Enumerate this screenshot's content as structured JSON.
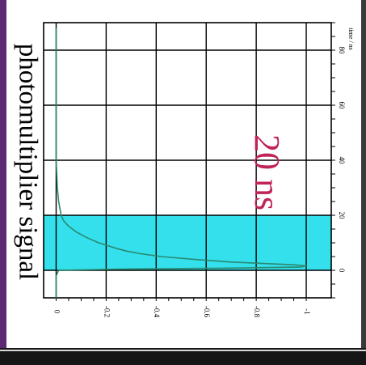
{
  "chart_data": {
    "type": "line",
    "title": "photomultiplier signal",
    "annotation": "20 ns",
    "xlabel": "time / ns",
    "ylabel": "",
    "xlim": [
      -10,
      90
    ],
    "ylim": [
      -1.1,
      0.05
    ],
    "x_ticks": [
      0,
      20,
      40,
      60,
      80
    ],
    "y_ticks": [
      0,
      -0.2,
      -0.4,
      -0.6,
      -0.8,
      -1
    ],
    "grid": true,
    "orientation": "rotated-90-clockwise",
    "highlight": {
      "x_start": 0,
      "x_end": 20,
      "color": "#33e0ec"
    },
    "line_color": "#2a8a70",
    "annotation_color": "#c0245a",
    "series": [
      {
        "x": [
          -10,
          -6,
          -4,
          -2,
          0,
          0.5,
          0.8,
          1.2,
          1.6,
          2,
          3,
          4,
          5,
          6,
          7,
          8,
          10,
          12,
          14,
          16,
          18,
          20,
          25,
          30,
          40,
          50,
          60,
          70,
          80,
          88
        ],
        "y": [
          0,
          0,
          0,
          0,
          -0.01,
          -0.3,
          -0.7,
          -0.98,
          -1.0,
          -0.95,
          -0.7,
          -0.55,
          -0.42,
          -0.34,
          -0.28,
          -0.24,
          -0.17,
          -0.12,
          -0.08,
          -0.05,
          -0.03,
          -0.02,
          -0.01,
          -0.005,
          0,
          0,
          0,
          0,
          0,
          0
        ]
      }
    ]
  }
}
